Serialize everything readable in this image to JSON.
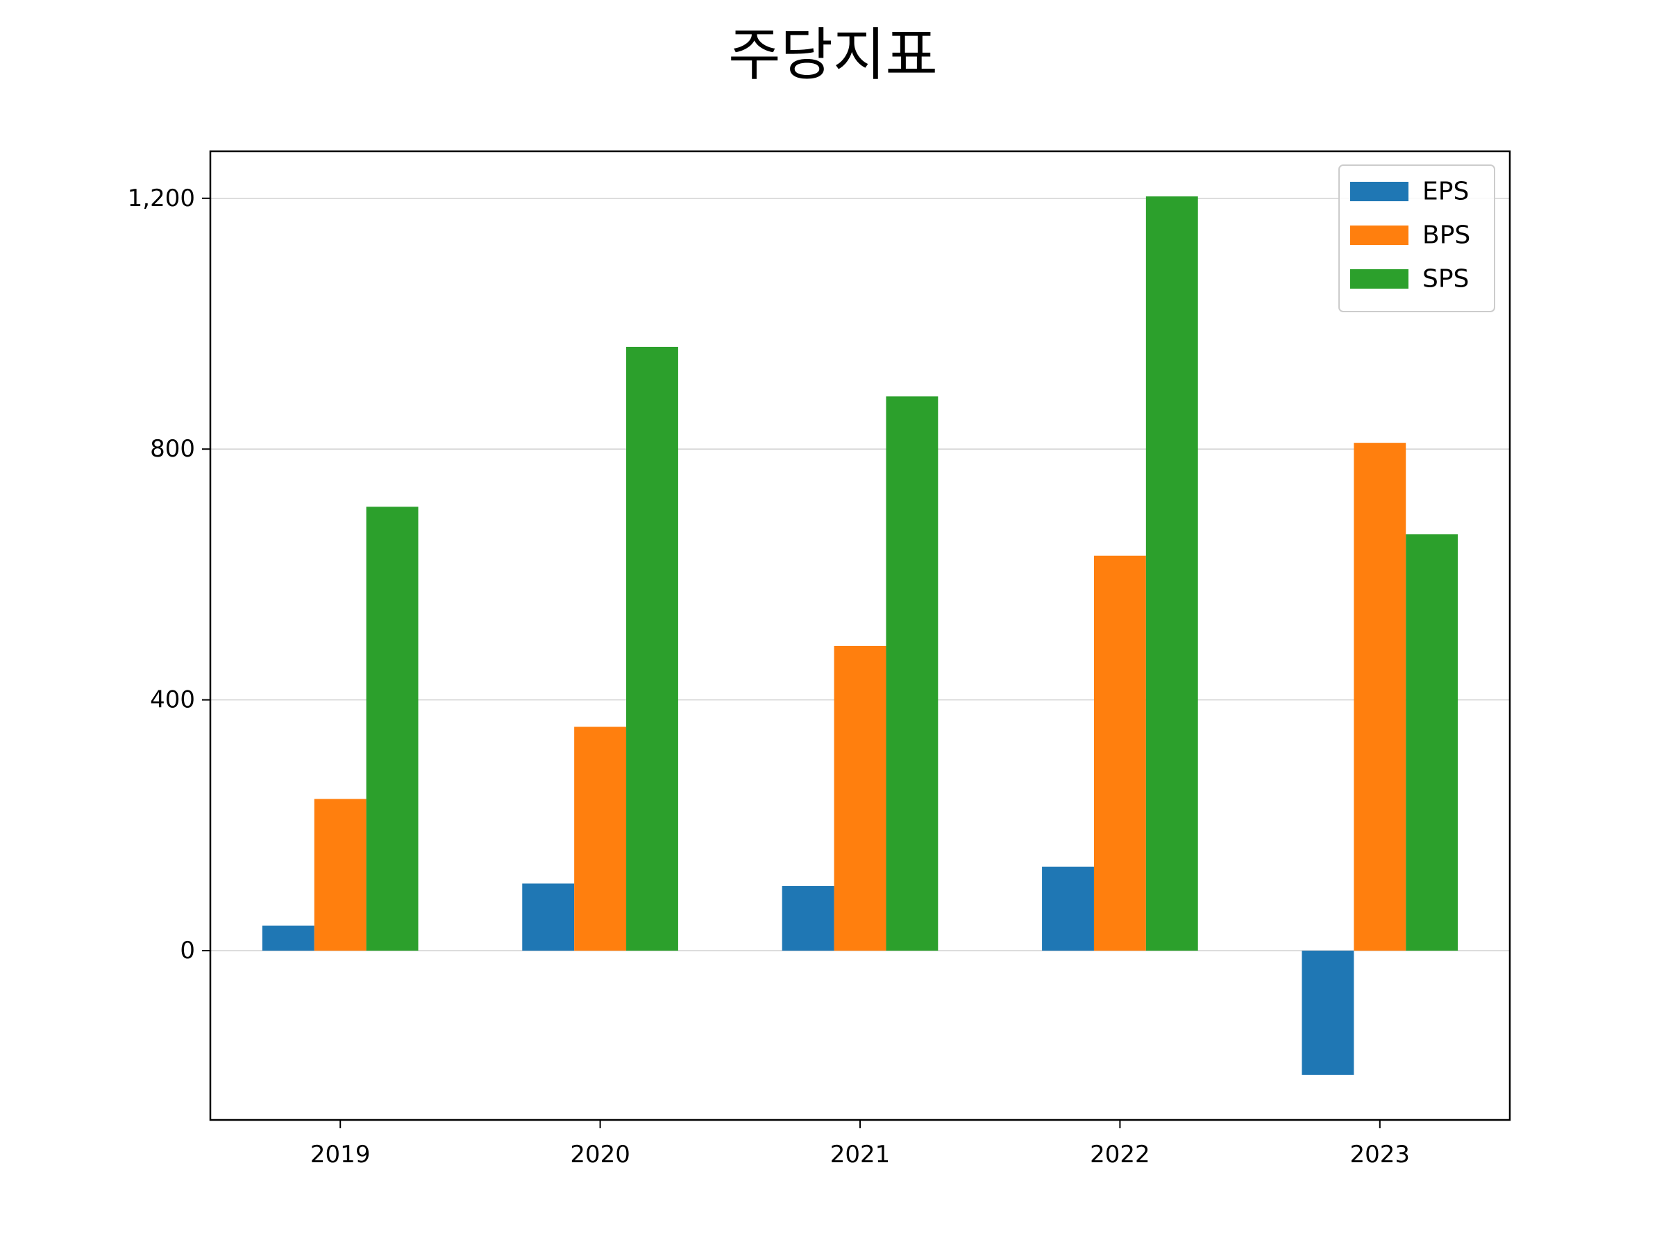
{
  "chart_data": {
    "type": "bar",
    "title": "주당지표",
    "xlabel": "",
    "ylabel": "",
    "categories": [
      "2019",
      "2020",
      "2021",
      "2022",
      "2023"
    ],
    "series": [
      {
        "name": "EPS",
        "color": "#1f77b4",
        "values": [
          40,
          107,
          103,
          134,
          -198
        ]
      },
      {
        "name": "BPS",
        "color": "#ff7f0e",
        "values": [
          242,
          357,
          486,
          630,
          810
        ]
      },
      {
        "name": "SPS",
        "color": "#2ca02c",
        "values": [
          708,
          963,
          884,
          1203,
          664
        ]
      }
    ],
    "ylim": [
      -270,
      1275
    ],
    "yticks": [
      0,
      400,
      800,
      1200
    ],
    "ytick_labels": [
      "0",
      "400",
      "800",
      "1,200"
    ],
    "grid": "y",
    "legend_position": "top-right"
  }
}
